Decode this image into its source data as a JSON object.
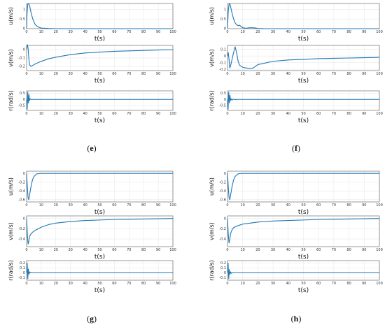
{
  "chart_data": [
    {
      "id": "e_u",
      "type": "line",
      "panel": "e",
      "xlabel": "t(s)",
      "ylabel": "u(m/s)",
      "xlim": [
        0,
        100
      ],
      "ylim": [
        0,
        1.3
      ],
      "xticks": [
        0,
        10,
        20,
        30,
        40,
        50,
        60,
        70,
        80,
        90,
        100
      ],
      "yticks": [
        0,
        0.5,
        1
      ],
      "grid": true,
      "x": [
        0,
        0.3,
        0.8,
        1.2,
        2,
        3,
        4,
        5,
        6,
        8,
        10,
        15,
        20,
        30,
        100
      ],
      "y": [
        0,
        0.8,
        1.25,
        1.3,
        1.2,
        0.85,
        0.55,
        0.35,
        0.2,
        0.08,
        0.03,
        0.01,
        0,
        0,
        0
      ]
    },
    {
      "id": "e_v",
      "type": "line",
      "panel": "e",
      "xlabel": "t(s)",
      "ylabel": "v(m/s)",
      "xlim": [
        0,
        100
      ],
      "ylim": [
        -0.25,
        0.05
      ],
      "xticks": [
        0,
        10,
        20,
        30,
        40,
        50,
        60,
        70,
        80,
        90,
        100
      ],
      "yticks": [
        -0.2,
        -0.1,
        0
      ],
      "grid": true,
      "x": [
        0,
        0.5,
        1,
        1.5,
        2,
        3,
        4,
        6,
        10,
        15,
        20,
        30,
        40,
        50,
        60,
        70,
        80,
        90,
        100
      ],
      "y": [
        0,
        0.06,
        0.02,
        -0.1,
        -0.18,
        -0.2,
        -0.19,
        -0.17,
        -0.14,
        -0.11,
        -0.09,
        -0.06,
        -0.04,
        -0.03,
        -0.02,
        -0.015,
        -0.01,
        -0.005,
        0
      ]
    },
    {
      "id": "e_r",
      "type": "line",
      "panel": "e",
      "xlabel": "t(s)",
      "ylabel": "r(rad/s)",
      "xlim": [
        0,
        100
      ],
      "ylim": [
        -0.9,
        0.7
      ],
      "xticks": [
        0,
        10,
        20,
        30,
        40,
        50,
        60,
        70,
        80,
        90,
        100
      ],
      "yticks": [
        -0.5,
        0,
        0.5
      ],
      "grid": true,
      "x": [
        0,
        0.4,
        0.8,
        1.2,
        1.6,
        2,
        2.5,
        3,
        4,
        100
      ],
      "y": [
        0,
        -0.8,
        0.6,
        -0.3,
        0.4,
        -0.1,
        0.05,
        0,
        0,
        0
      ]
    },
    {
      "id": "f_u",
      "type": "line",
      "panel": "f",
      "xlabel": "t(s)",
      "ylabel": "u(m/s)",
      "xlim": [
        0,
        100
      ],
      "ylim": [
        0,
        1.3
      ],
      "xticks": [
        0,
        10,
        20,
        30,
        40,
        50,
        60,
        70,
        80,
        90,
        100
      ],
      "yticks": [
        0,
        0.5,
        1
      ],
      "grid": true,
      "x": [
        0,
        0.5,
        1,
        1.5,
        2,
        3,
        4,
        5,
        6,
        7,
        8,
        9,
        10,
        12,
        15,
        18,
        20,
        25,
        100
      ],
      "y": [
        0,
        0.9,
        1.25,
        1.3,
        1.15,
        0.8,
        0.5,
        0.3,
        0.2,
        0.15,
        0.18,
        0.1,
        0.05,
        0.02,
        0.05,
        0.04,
        0.01,
        0,
        0
      ]
    },
    {
      "id": "f_v",
      "type": "line",
      "panel": "f",
      "xlabel": "t(s)",
      "ylabel": "v(m/s)",
      "xlim": [
        0,
        100
      ],
      "ylim": [
        -0.22,
        0.16
      ],
      "xticks": [
        0,
        10,
        20,
        30,
        40,
        50,
        60,
        70,
        80,
        90,
        100
      ],
      "yticks": [
        -0.2,
        -0.1,
        0,
        0.1
      ],
      "grid": true,
      "x": [
        0,
        0.5,
        1,
        1.5,
        2,
        3,
        4,
        5,
        6,
        7,
        8,
        10,
        12,
        15,
        17,
        20,
        30,
        40,
        50,
        60,
        70,
        80,
        90,
        100
      ],
      "y": [
        0,
        0.05,
        -0.05,
        -0.18,
        -0.15,
        -0.05,
        0.05,
        0.14,
        0.05,
        -0.08,
        -0.14,
        -0.17,
        -0.18,
        -0.19,
        -0.18,
        -0.13,
        -0.08,
        -0.06,
        -0.05,
        -0.04,
        -0.035,
        -0.03,
        -0.025,
        -0.02
      ]
    },
    {
      "id": "f_r",
      "type": "line",
      "panel": "f",
      "xlabel": "t(s)",
      "ylabel": "r(rad/s)",
      "xlim": [
        0,
        100
      ],
      "ylim": [
        -0.9,
        0.7
      ],
      "xticks": [
        0,
        10,
        20,
        30,
        40,
        50,
        60,
        70,
        80,
        90,
        100
      ],
      "yticks": [
        -0.5,
        0,
        0.5
      ],
      "grid": true,
      "x": [
        0,
        0.4,
        0.8,
        1.2,
        1.6,
        2,
        2.5,
        3,
        4,
        5,
        6,
        100
      ],
      "y": [
        0,
        -0.8,
        0.6,
        -0.3,
        0.35,
        -0.1,
        0.05,
        -0.05,
        0.03,
        -0.02,
        0,
        0
      ]
    },
    {
      "id": "g_u",
      "type": "line",
      "panel": "g",
      "xlabel": "t(s)",
      "ylabel": "u(m/s)",
      "xlim": [
        0,
        100
      ],
      "ylim": [
        -0.65,
        0.05
      ],
      "xticks": [
        0,
        10,
        20,
        30,
        40,
        50,
        60,
        70,
        80,
        90,
        100
      ],
      "yticks": [
        -0.6,
        -0.4,
        -0.2,
        0
      ],
      "grid": true,
      "x": [
        0,
        0.5,
        1,
        1.5,
        2,
        3,
        4,
        5,
        7,
        10,
        15,
        20,
        100
      ],
      "y": [
        0,
        -0.3,
        -0.55,
        -0.6,
        -0.5,
        -0.3,
        -0.15,
        -0.07,
        -0.01,
        0,
        0,
        0,
        0
      ]
    },
    {
      "id": "g_v",
      "type": "line",
      "panel": "g",
      "xlabel": "t(s)",
      "ylabel": "v(m/s)",
      "xlim": [
        0,
        100
      ],
      "ylim": [
        -0.55,
        0.05
      ],
      "xticks": [
        0,
        10,
        20,
        30,
        40,
        50,
        60,
        70,
        80,
        90,
        100
      ],
      "yticks": [
        -0.4,
        -0.2,
        0
      ],
      "grid": true,
      "x": [
        0,
        0.5,
        1,
        1.5,
        2,
        3,
        4,
        6,
        8,
        10,
        15,
        20,
        30,
        40,
        50,
        60,
        70,
        80,
        90,
        100
      ],
      "y": [
        0,
        -0.3,
        -0.5,
        -0.45,
        -0.35,
        -0.3,
        -0.27,
        -0.23,
        -0.2,
        -0.17,
        -0.12,
        -0.09,
        -0.06,
        -0.04,
        -0.03,
        -0.02,
        -0.015,
        -0.01,
        -0.005,
        0
      ]
    },
    {
      "id": "g_r",
      "type": "line",
      "panel": "g",
      "xlabel": "t(s)",
      "ylabel": "r(rad/s)",
      "xlim": [
        0,
        100
      ],
      "ylim": [
        -0.15,
        0.25
      ],
      "xticks": [
        0,
        10,
        20,
        30,
        40,
        50,
        60,
        70,
        80,
        90,
        100
      ],
      "yticks": [
        -0.1,
        0,
        0.1,
        0.2
      ],
      "grid": true,
      "x": [
        0,
        0.4,
        0.8,
        1.2,
        1.6,
        2,
        2.5,
        3,
        4,
        100
      ],
      "y": [
        0,
        0.2,
        -0.12,
        0.08,
        -0.03,
        0.02,
        0,
        0.005,
        0,
        0
      ]
    },
    {
      "id": "h_u",
      "type": "line",
      "panel": "h",
      "xlabel": "t(s)",
      "ylabel": "u(m/s)",
      "xlim": [
        0,
        100
      ],
      "ylim": [
        -0.65,
        0.05
      ],
      "xticks": [
        0,
        10,
        20,
        30,
        40,
        50,
        60,
        70,
        80,
        90,
        100
      ],
      "yticks": [
        -0.6,
        -0.4,
        -0.2,
        0
      ],
      "grid": true,
      "x": [
        0,
        0.5,
        1,
        1.5,
        2,
        3,
        4,
        5,
        7,
        10,
        15,
        20,
        100
      ],
      "y": [
        0,
        -0.3,
        -0.55,
        -0.6,
        -0.5,
        -0.3,
        -0.15,
        -0.07,
        -0.01,
        0,
        0,
        0,
        0
      ]
    },
    {
      "id": "h_v",
      "type": "line",
      "panel": "h",
      "xlabel": "t(s)",
      "ylabel": "v(m/s)",
      "xlim": [
        0,
        100
      ],
      "ylim": [
        -0.55,
        0.05
      ],
      "xticks": [
        0,
        10,
        20,
        30,
        40,
        50,
        60,
        70,
        80,
        90,
        100
      ],
      "yticks": [
        -0.4,
        -0.2,
        0
      ],
      "grid": true,
      "x": [
        0,
        0.5,
        1,
        1.5,
        2,
        3,
        4,
        6,
        8,
        10,
        15,
        20,
        30,
        40,
        50,
        60,
        70,
        80,
        90,
        100
      ],
      "y": [
        0,
        -0.3,
        -0.48,
        -0.42,
        -0.3,
        -0.22,
        -0.18,
        -0.15,
        -0.13,
        -0.11,
        -0.09,
        -0.07,
        -0.05,
        -0.04,
        -0.03,
        -0.02,
        -0.015,
        -0.01,
        -0.005,
        0
      ]
    },
    {
      "id": "h_r",
      "type": "line",
      "panel": "h",
      "xlabel": "t(s)",
      "ylabel": "r(rad/s)",
      "xlim": [
        0,
        100
      ],
      "ylim": [
        -0.15,
        0.25
      ],
      "xticks": [
        0,
        10,
        20,
        30,
        40,
        50,
        60,
        70,
        80,
        90,
        100
      ],
      "yticks": [
        -0.1,
        0,
        0.1,
        0.2
      ],
      "grid": true,
      "x": [
        0,
        0.4,
        0.8,
        1.2,
        1.6,
        2,
        2.5,
        3,
        4,
        5,
        100
      ],
      "y": [
        0,
        0.2,
        -0.12,
        0.07,
        -0.03,
        0.02,
        -0.01,
        0.005,
        0,
        0,
        0
      ]
    }
  ],
  "captions": {
    "e": "(e)",
    "f": "(f)",
    "g": "(g)",
    "h": "(h)"
  },
  "colors": {
    "line": "#1f77b4",
    "grid": "#e4e4e4",
    "axis": "#555555"
  }
}
